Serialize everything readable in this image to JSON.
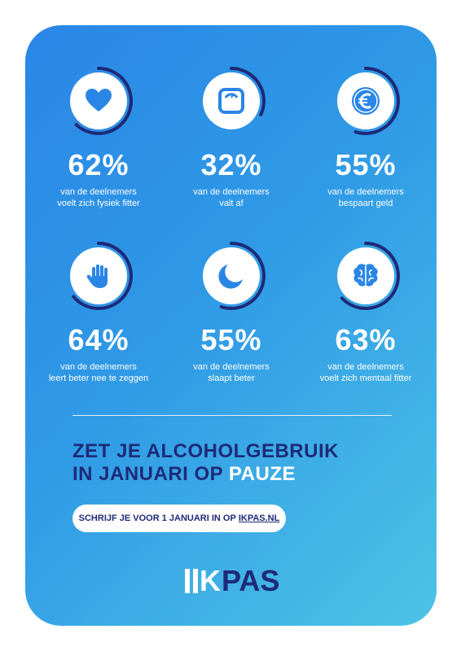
{
  "stats": [
    {
      "icon": "heart-icon",
      "percent": "62%",
      "line1": "van de deelnemers",
      "line2": "voelt zich fysiek fitter",
      "progress": 0.62
    },
    {
      "icon": "scale-icon",
      "percent": "32%",
      "line1": "van de deelnemers",
      "line2": "valt af",
      "progress": 0.32
    },
    {
      "icon": "euro-icon",
      "percent": "55%",
      "line1": "van de deelnemers",
      "line2": "bespaart geld",
      "progress": 0.55
    },
    {
      "icon": "hand-icon",
      "percent": "64%",
      "line1": "van de deelnemers",
      "line2": "leert beter nee te zeggen",
      "progress": 0.64
    },
    {
      "icon": "moon-icon",
      "percent": "55%",
      "line1": "van de deelnemers",
      "line2": "slaapt beter",
      "progress": 0.55
    },
    {
      "icon": "brain-icon",
      "percent": "63%",
      "line1": "van de deelnemers",
      "line2": "voelt zich mentaal fitter",
      "progress": 0.63
    }
  ],
  "headline": {
    "line1": "ZET JE ALCOHOLGEBRUIK",
    "line2_prefix": "IN JANUARI OP ",
    "line2_highlight": "PAUZE"
  },
  "cta": {
    "text": "SCHRIJF JE VOOR 1 JANUARI IN OP",
    "link": "IKPAS.NL"
  },
  "logo": {
    "k": "K",
    "pas": "PAS"
  },
  "colors": {
    "navy": "#1e2a78",
    "gradient_start": "#2a86e6",
    "gradient_end": "#4ec3e6",
    "white": "#ffffff"
  }
}
